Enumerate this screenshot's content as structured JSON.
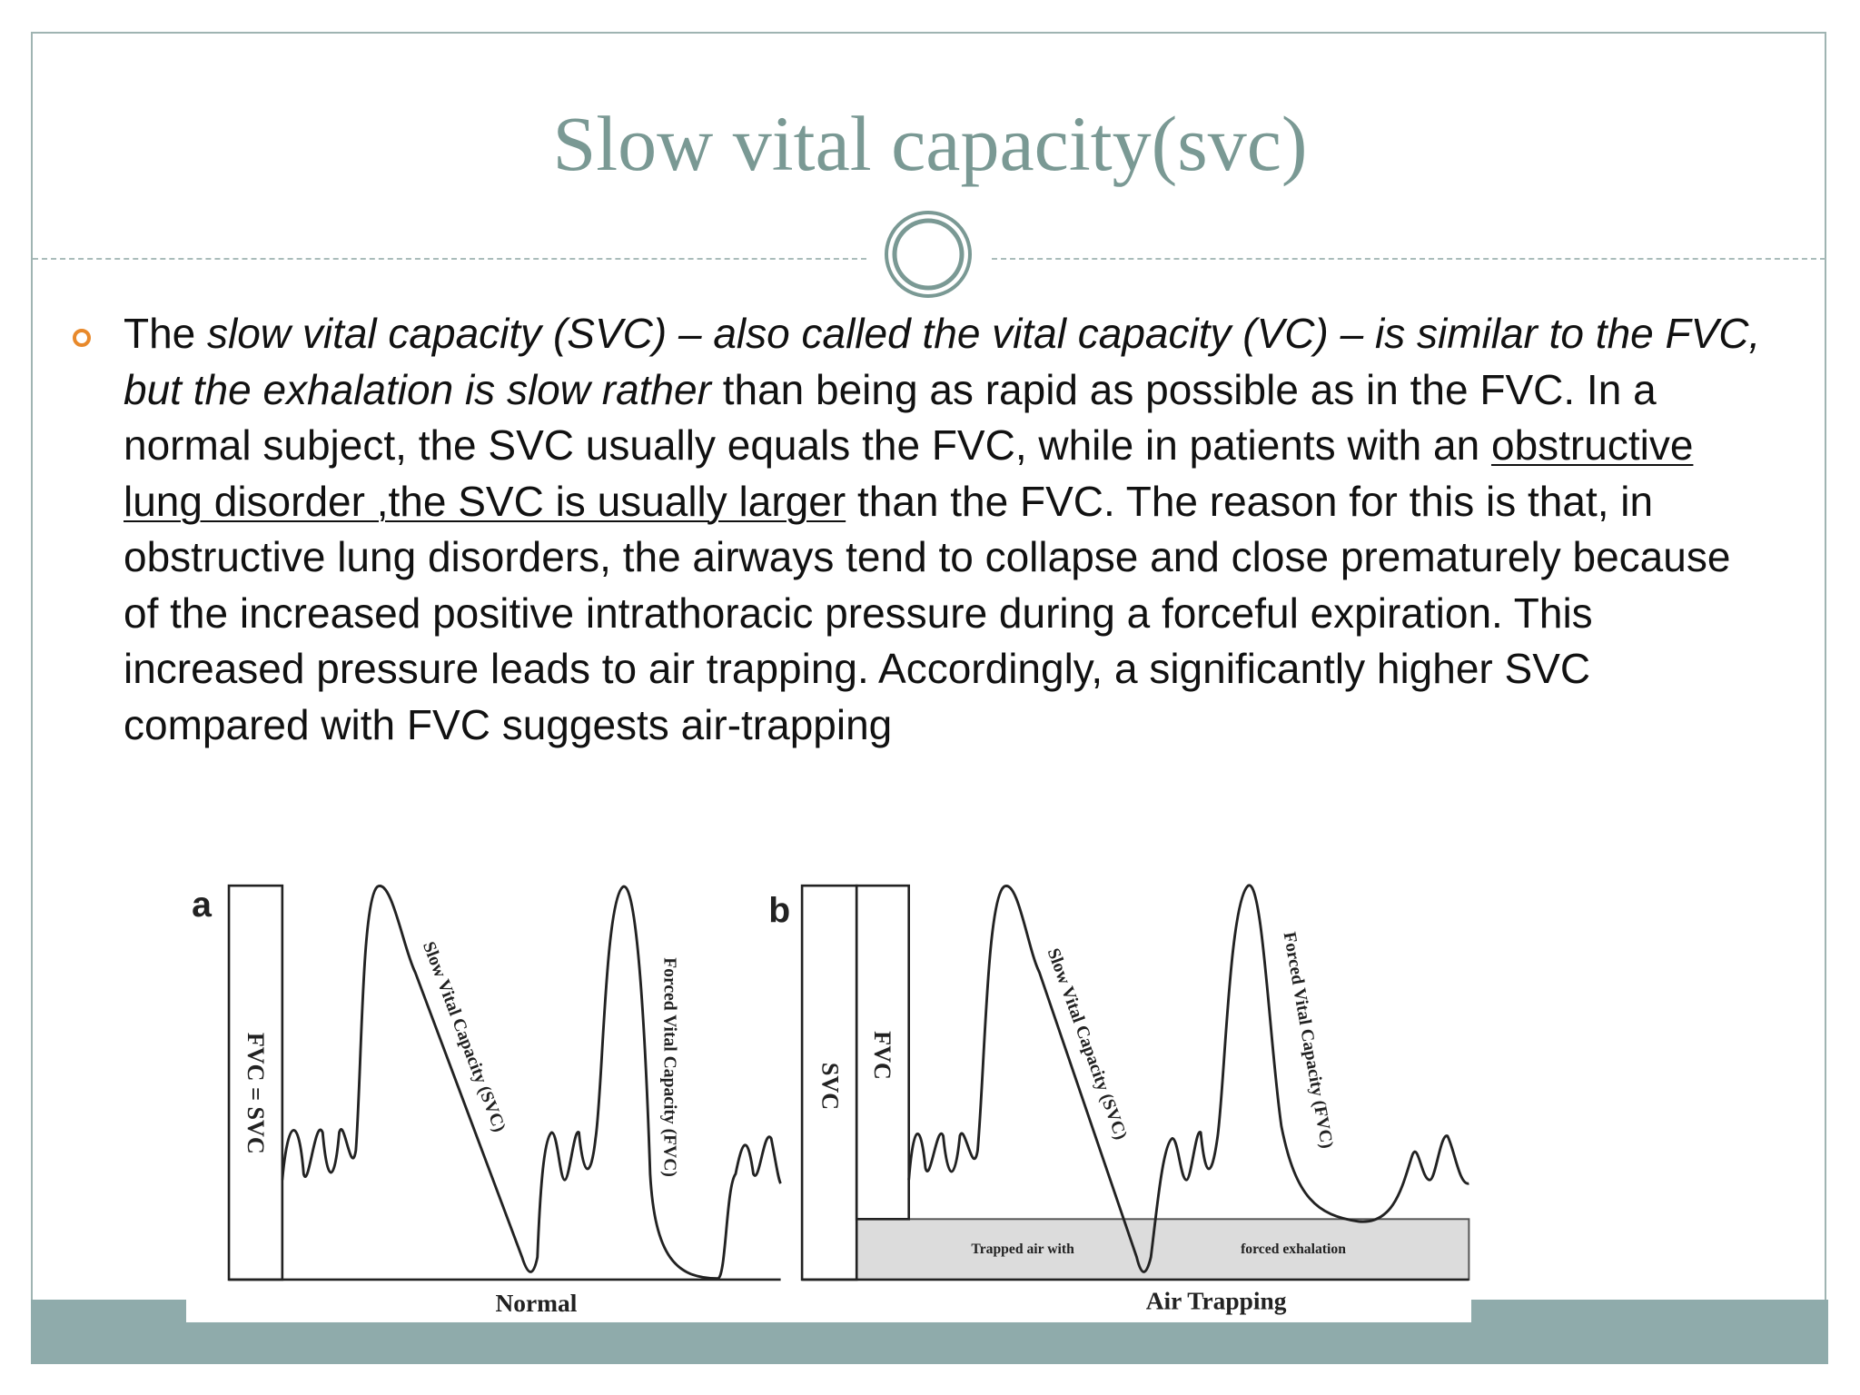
{
  "slide": {
    "title": "Slow vital capacity(svc)",
    "bullet": {
      "runs": [
        {
          "text": "The ",
          "style": "normal"
        },
        {
          "text": "slow vital capacity (SVC) – also called the vital capacity (VC) – is similar to the FVC, but the exhalation is slow rather",
          "style": "italic"
        },
        {
          "text": " than being as rapid as possible as in the FVC. In a normal subject, the SVC usually equals the FVC, while in patients with an ",
          "style": "normal"
        },
        {
          "text": "obstructive lung disorder ,the SVC is usually larger",
          "style": "underline"
        },
        {
          "text": " than the FVC. The reason for this is that, in obstructive lung disorders, the airways tend to collapse and close prematurely because of the increased positive intrathoracic pressure during a forceful expiration. This increased pressure leads to air trapping. Accordingly, a significantly higher SVC compared with FVC suggests air-trapping",
          "style": "normal"
        }
      ]
    },
    "figure": {
      "panel_a": {
        "letter": "a",
        "bar_label": "FVC = SVC",
        "slow_label": "Slow Vital Capacity (SVC)",
        "forced_label": "Forced Vital Capacity (FVC)",
        "caption": "Normal"
      },
      "panel_b": {
        "letter": "b",
        "svc_label": "SVC",
        "fvc_label": "FVC",
        "slow_label": "Slow Vital Capacity (SVC)",
        "forced_label": "Forced Vital Capacity (FVC)",
        "trapped_left": "Trapped air with",
        "trapped_right": "forced exhalation",
        "caption": "Air Trapping"
      }
    }
  }
}
